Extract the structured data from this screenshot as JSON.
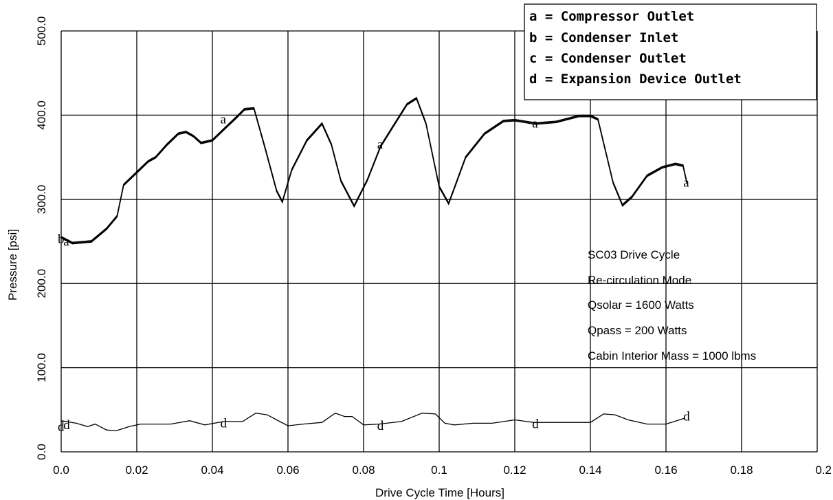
{
  "chart_data": {
    "type": "line",
    "xlabel": "Drive Cycle Time  [Hours]",
    "ylabel": "Pressure  [psi]",
    "xlim": [
      0,
      0.2
    ],
    "ylim": [
      0,
      500
    ],
    "x_ticks": [
      "0.0",
      "0.02",
      "0.04",
      "0.06",
      "0.08",
      "0.1",
      "0.12",
      "0.14",
      "0.16",
      "0.18",
      "0.2"
    ],
    "y_ticks": [
      "0.0",
      "100.0",
      "200.0",
      "300.0",
      "400.0",
      "500.0"
    ],
    "grid": true,
    "legend": {
      "placement": "top-right",
      "entries": [
        "a = Compressor Outlet",
        "b = Condenser Inlet",
        "c = Condenser Outlet",
        "d = Expansion Device Outlet"
      ]
    },
    "annotations": [
      "SC03 Drive Cycle",
      "Re-circulation Mode",
      "Qsolar = 1600 Watts",
      "Qpass = 200 Watts",
      "Cabin Interior Mass = 1000 lbms"
    ],
    "series": [
      {
        "name": "a",
        "x": [
          0.0,
          0.003,
          0.008,
          0.012,
          0.0148,
          0.0165,
          0.02,
          0.023,
          0.025,
          0.028,
          0.031,
          0.033,
          0.035,
          0.037,
          0.04,
          0.043,
          0.0465,
          0.0485,
          0.051,
          0.054,
          0.057,
          0.0585,
          0.061,
          0.065,
          0.069,
          0.0715,
          0.074,
          0.0775,
          0.081,
          0.0845,
          0.088,
          0.0915,
          0.094,
          0.0965,
          0.1,
          0.1025,
          0.107,
          0.112,
          0.117,
          0.12,
          0.1255,
          0.131,
          0.137,
          0.14,
          0.142,
          0.146,
          0.1485,
          0.151,
          0.155,
          0.159,
          0.1625,
          0.1645,
          0.1655
        ],
        "y": [
          255,
          248,
          250,
          265,
          280,
          317,
          332,
          345,
          350,
          365,
          378,
          380,
          375,
          367,
          370,
          383,
          398,
          407,
          408,
          360,
          310,
          297,
          335,
          370,
          390,
          365,
          322,
          292,
          323,
          363,
          388,
          413,
          420,
          390,
          315,
          295,
          350,
          378,
          393,
          394,
          390,
          392,
          399,
          399,
          395,
          320,
          293,
          303,
          328,
          338,
          342,
          340,
          320
        ]
      },
      {
        "name": "b",
        "x": [
          0.0,
          0.003,
          0.008,
          0.012,
          0.0148,
          0.0165,
          0.02,
          0.023,
          0.025,
          0.028,
          0.031,
          0.033,
          0.035,
          0.037,
          0.04,
          0.043,
          0.0465,
          0.0485,
          0.051,
          0.054,
          0.057,
          0.0585,
          0.061,
          0.065,
          0.069,
          0.0715,
          0.074,
          0.0775,
          0.081,
          0.0845,
          0.088,
          0.0915,
          0.094,
          0.0965,
          0.1,
          0.1025,
          0.107,
          0.112,
          0.117,
          0.12,
          0.1255,
          0.131,
          0.137,
          0.14,
          0.142,
          0.146,
          0.1485,
          0.151,
          0.155,
          0.159,
          0.1625,
          0.1645,
          0.1655
        ],
        "y": [
          256,
          249,
          251,
          266,
          281,
          318,
          333,
          346,
          351,
          366,
          379,
          381,
          376,
          368,
          371,
          384,
          399,
          408,
          409,
          361,
          311,
          298,
          336,
          371,
          391,
          366,
          323,
          293,
          324,
          364,
          389,
          414,
          421,
          391,
          316,
          296,
          351,
          379,
          394,
          395,
          391,
          393,
          400,
          400,
          396,
          321,
          294,
          304,
          329,
          339,
          343,
          341,
          321
        ]
      },
      {
        "name": "c",
        "x": [
          0.0,
          0.003,
          0.008,
          0.012,
          0.0148,
          0.0165,
          0.02,
          0.023,
          0.025,
          0.028,
          0.031,
          0.033,
          0.035,
          0.037,
          0.04,
          0.043,
          0.0465,
          0.0485,
          0.051,
          0.054,
          0.057,
          0.0585,
          0.061,
          0.065,
          0.069,
          0.0715,
          0.074,
          0.0775,
          0.081,
          0.0845,
          0.088,
          0.0915,
          0.094,
          0.0965,
          0.1,
          0.1025,
          0.107,
          0.112,
          0.117,
          0.12,
          0.1255,
          0.131,
          0.137,
          0.14,
          0.142,
          0.146,
          0.1485,
          0.151,
          0.155,
          0.159,
          0.1625,
          0.1645,
          0.1655
        ],
        "y": [
          254,
          247,
          249,
          264,
          279,
          316,
          331,
          344,
          349,
          364,
          377,
          379,
          374,
          366,
          369,
          382,
          397,
          406,
          407,
          359,
          309,
          296,
          334,
          369,
          389,
          364,
          321,
          291,
          322,
          362,
          387,
          412,
          419,
          389,
          314,
          294,
          349,
          377,
          392,
          393,
          389,
          391,
          398,
          398,
          394,
          319,
          292,
          302,
          327,
          337,
          341,
          339,
          319
        ]
      },
      {
        "name": "d",
        "x": [
          0.0,
          0.004,
          0.007,
          0.009,
          0.012,
          0.0145,
          0.018,
          0.021,
          0.024,
          0.029,
          0.034,
          0.038,
          0.043,
          0.048,
          0.0515,
          0.0545,
          0.057,
          0.06,
          0.064,
          0.069,
          0.0725,
          0.075,
          0.077,
          0.08,
          0.084,
          0.09,
          0.0955,
          0.099,
          0.1015,
          0.104,
          0.109,
          0.114,
          0.12,
          0.125,
          0.13,
          0.135,
          0.14,
          0.1435,
          0.1465,
          0.15,
          0.155,
          0.16,
          0.165
        ],
        "y": [
          37,
          34,
          30,
          33,
          26,
          25,
          30,
          33,
          33,
          33,
          37,
          32,
          36,
          36,
          46,
          44,
          38,
          31,
          33,
          35,
          46,
          42,
          42,
          32,
          33,
          36,
          46,
          45,
          34,
          32,
          34,
          34,
          38,
          35,
          35,
          35,
          35,
          45,
          44,
          38,
          33,
          33,
          40
        ]
      }
    ],
    "point_labels": [
      {
        "label": "b",
        "x": 0.0,
        "y": 253
      },
      {
        "label": "a",
        "x": 0.0015,
        "y": 250
      },
      {
        "label": "a",
        "x": 0.043,
        "y": 395
      },
      {
        "label": "a",
        "x": 0.0845,
        "y": 365
      },
      {
        "label": "a",
        "x": 0.1255,
        "y": 390
      },
      {
        "label": "a",
        "x": 0.1655,
        "y": 320
      },
      {
        "label": "d",
        "x": 0.0,
        "y": 30
      },
      {
        "label": "d",
        "x": 0.0015,
        "y": 32
      },
      {
        "label": "d",
        "x": 0.043,
        "y": 34
      },
      {
        "label": "d",
        "x": 0.0845,
        "y": 31
      },
      {
        "label": "d",
        "x": 0.1255,
        "y": 33
      },
      {
        "label": "d",
        "x": 0.1655,
        "y": 42
      }
    ]
  }
}
